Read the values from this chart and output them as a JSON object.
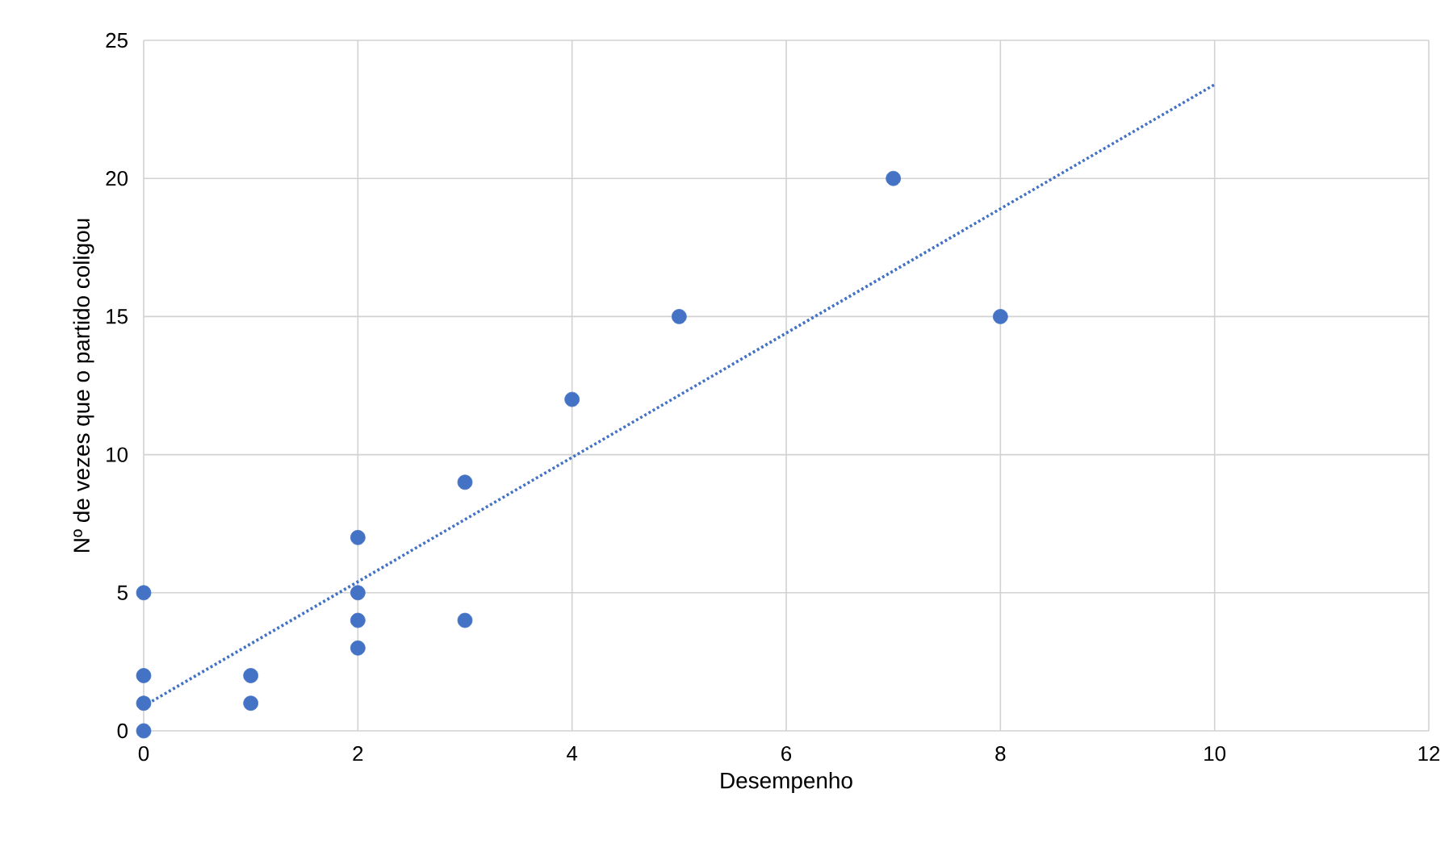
{
  "chart_data": {
    "type": "scatter",
    "xlabel": "Desempenho",
    "ylabel": "Nº de vezes que o partido coligou",
    "xlim": [
      0,
      12
    ],
    "ylim": [
      0,
      25
    ],
    "xticks": [
      0,
      2,
      4,
      6,
      8,
      10,
      12
    ],
    "yticks": [
      0,
      5,
      10,
      15,
      20,
      25
    ],
    "grid": true,
    "series": [
      {
        "color": "#4472c4",
        "marker": "circle",
        "x": [
          0,
          0,
          0,
          0,
          1,
          1,
          2,
          2,
          2,
          2,
          3,
          3,
          4,
          5,
          7,
          8
        ],
        "values": [
          0,
          1,
          2,
          5,
          1,
          2,
          3,
          4,
          5,
          7,
          4,
          9,
          12,
          15,
          20,
          15
        ]
      },
      {
        "type": "line",
        "color": "#4472c4",
        "marker": "none",
        "line_style": "dotted",
        "x": [
          0,
          10
        ],
        "values": [
          0.9,
          23.4
        ]
      }
    ]
  }
}
